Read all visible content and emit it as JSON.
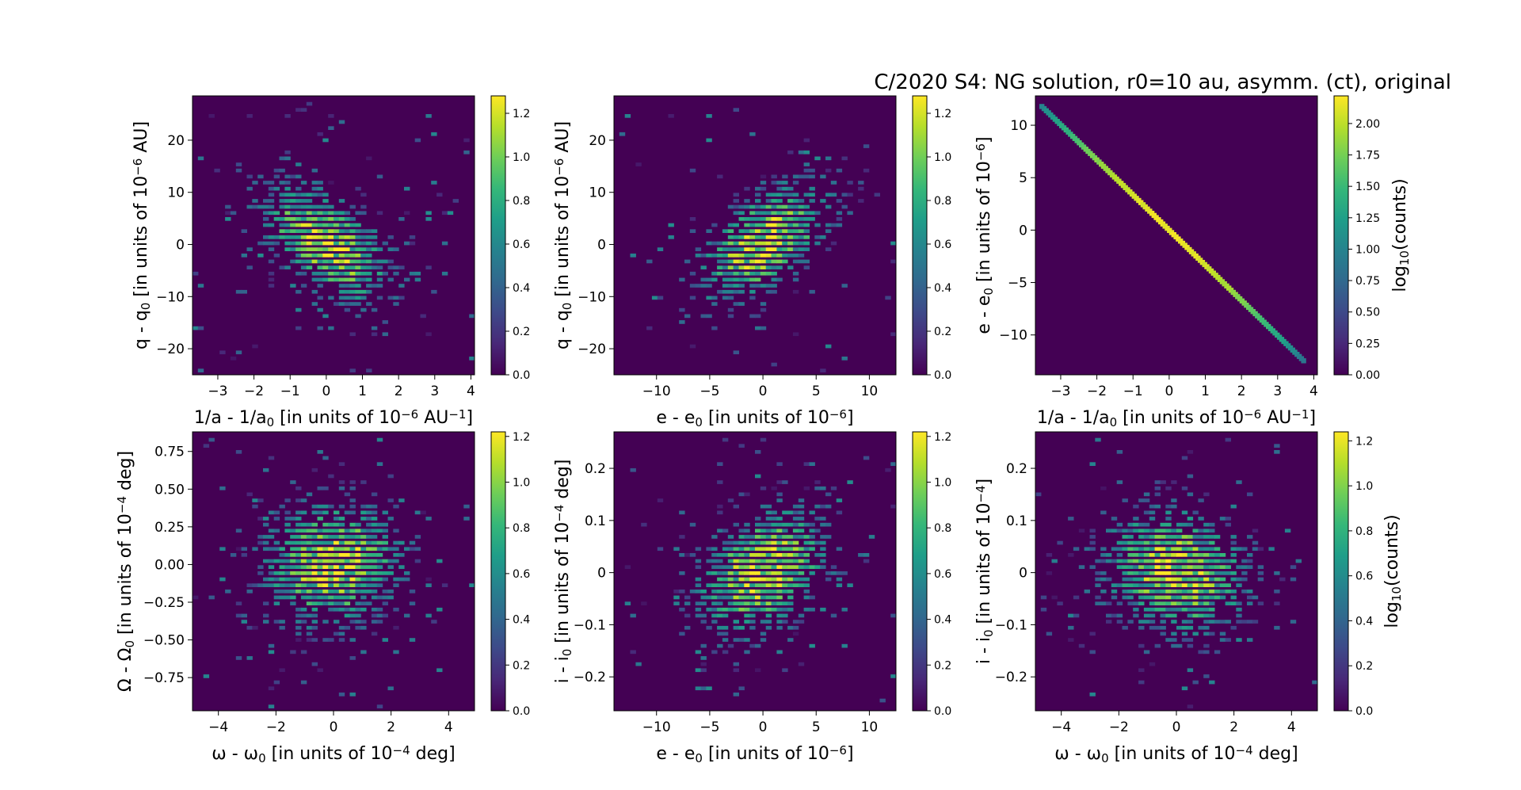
{
  "title": "C/2020 S4: NG solution, r0=10 au, asymm. (ct), original",
  "colors": {
    "colormap": "viridis",
    "stops": [
      "#440154",
      "#482878",
      "#3e4989",
      "#31688e",
      "#26828e",
      "#1f9e89",
      "#35b779",
      "#6ece58",
      "#b5de2b",
      "#fde725"
    ]
  },
  "chart_data": [
    {
      "type": "heatmap",
      "panel": "top-left",
      "xlabel": {
        "base": "1/a - 1/a",
        "sub": "0",
        "mid": " [in units of 10",
        "sup": "−6",
        "end": " AU",
        "sup2": "−1",
        "tail": "]"
      },
      "ylabel": {
        "base": "q - q",
        "sub": "0",
        "mid": " [in units of 10",
        "sup": "−6",
        "end": " AU]"
      },
      "xlim": [
        -3.7,
        4.1
      ],
      "ylim": [
        -25,
        28.5
      ],
      "xticks": [
        -3,
        -2,
        -1,
        0,
        1,
        2,
        3,
        4
      ],
      "yticks": [
        -20,
        -10,
        0,
        10,
        20
      ],
      "correlation": -0.55,
      "xsd": 1.1,
      "ysd": 7.0,
      "colorbar": {
        "label": "",
        "range": [
          0,
          1.28
        ],
        "ticks": [
          0.0,
          0.2,
          0.4,
          0.6,
          0.8,
          1.0,
          1.2
        ]
      }
    },
    {
      "type": "heatmap",
      "panel": "top-middle",
      "xlabel": {
        "base": "e - e",
        "sub": "0",
        "mid": " [in units of 10",
        "sup": "−6",
        "end": "]"
      },
      "ylabel": {
        "base": "q - q",
        "sub": "0",
        "mid": " [in units of 10",
        "sup": "−6",
        "end": " AU]"
      },
      "xlim": [
        -14,
        12.5
      ],
      "ylim": [
        -25,
        28.5
      ],
      "xticks": [
        -10,
        -5,
        0,
        5,
        10
      ],
      "yticks": [
        -20,
        -10,
        0,
        10,
        20
      ],
      "correlation": 0.55,
      "xsd": 3.8,
      "ysd": 7.0,
      "colorbar": {
        "label": "",
        "range": [
          0,
          1.28
        ],
        "ticks": [
          0.0,
          0.2,
          0.4,
          0.6,
          0.8,
          1.0,
          1.2
        ]
      }
    },
    {
      "type": "heatmap",
      "panel": "top-right",
      "xlabel": {
        "base": "1/a - 1/a",
        "sub": "0",
        "mid": " [in units of 10",
        "sup": "−6",
        "end": " AU",
        "sup2": "−1",
        "tail": "]"
      },
      "ylabel": {
        "base": "e - e",
        "sub": "0",
        "mid": " [in units of 10",
        "sup": "−6",
        "end": "]"
      },
      "xlim": [
        -3.7,
        4.1
      ],
      "ylim": [
        -13.8,
        12.8
      ],
      "xticks": [
        -3,
        -2,
        -1,
        0,
        1,
        2,
        3,
        4
      ],
      "yticks": [
        -10,
        -5,
        0,
        5,
        10
      ],
      "line": {
        "slope": -3.35,
        "from": -3.55,
        "to": 3.75
      },
      "colorbar": {
        "label": {
          "base": "log",
          "sub": "10",
          "end": "(counts)"
        },
        "range": [
          0,
          2.22
        ],
        "ticks": [
          0.0,
          0.25,
          0.5,
          0.75,
          1.0,
          1.25,
          1.5,
          1.75,
          2.0
        ],
        "tick_labels": [
          "0.00",
          "0.25",
          "0.50",
          "0.75",
          "1.00",
          "1.25",
          "1.50",
          "1.75",
          "2.00"
        ]
      }
    },
    {
      "type": "heatmap",
      "panel": "bottom-left",
      "xlabel": {
        "base": "ω - ω",
        "sub": "0",
        "mid": " [in units of 10",
        "sup": "−4",
        "end": " deg]"
      },
      "ylabel": {
        "base": "Ω - Ω",
        "sub": "0",
        "mid": " [in units of 10",
        "sup": "−4",
        "end": " deg]"
      },
      "xlim": [
        -4.9,
        4.9
      ],
      "ylim": [
        -0.97,
        0.88
      ],
      "xticks": [
        -4,
        -2,
        0,
        2,
        4
      ],
      "yticks": [
        -0.75,
        -0.5,
        -0.25,
        0.0,
        0.25,
        0.5,
        0.75
      ],
      "ytick_labels": [
        "−0.75",
        "−0.50",
        "−0.25",
        "0.00",
        "0.25",
        "0.50",
        "0.75"
      ],
      "correlation": 0.1,
      "xsd": 1.5,
      "ysd": 0.25,
      "colorbar": {
        "label": "",
        "range": [
          0,
          1.22
        ],
        "ticks": [
          0.0,
          0.2,
          0.4,
          0.6,
          0.8,
          1.0,
          1.2
        ]
      }
    },
    {
      "type": "heatmap",
      "panel": "bottom-middle",
      "xlabel": {
        "base": "e - e",
        "sub": "0",
        "mid": " [in units of 10",
        "sup": "−6",
        "end": "]"
      },
      "ylabel": {
        "base": "i - i",
        "sub": "0",
        "mid": " [in units of 10",
        "sup": "−4",
        "end": " deg]"
      },
      "xlim": [
        -14,
        12.5
      ],
      "ylim": [
        -0.265,
        0.27
      ],
      "xticks": [
        -10,
        -5,
        0,
        5,
        10
      ],
      "yticks": [
        -0.2,
        -0.1,
        0.0,
        0.1,
        0.2
      ],
      "correlation": 0.35,
      "xsd": 3.8,
      "ysd": 0.075,
      "colorbar": {
        "label": "",
        "range": [
          0,
          1.22
        ],
        "ticks": [
          0.0,
          0.2,
          0.4,
          0.6,
          0.8,
          1.0,
          1.2
        ]
      }
    },
    {
      "type": "heatmap",
      "panel": "bottom-right",
      "xlabel": {
        "base": "ω - ω",
        "sub": "0",
        "mid": " [in units of 10",
        "sup": "−4",
        "end": " deg]"
      },
      "ylabel": {
        "base": "i - i",
        "sub": "0",
        "mid": " [in units of 10",
        "sup": "−4",
        "end": "]"
      },
      "xlim": [
        -4.9,
        4.9
      ],
      "ylim": [
        -0.265,
        0.27
      ],
      "xticks": [
        -4,
        -2,
        0,
        2,
        4
      ],
      "yticks": [
        -0.2,
        -0.1,
        0.0,
        0.1,
        0.2
      ],
      "correlation": -0.15,
      "xsd": 1.5,
      "ysd": 0.075,
      "colorbar": {
        "label": {
          "base": "log",
          "sub": "10",
          "end": "(counts)"
        },
        "range": [
          0,
          1.24
        ],
        "ticks": [
          0.0,
          0.2,
          0.4,
          0.6,
          0.8,
          1.0,
          1.2
        ]
      }
    }
  ]
}
